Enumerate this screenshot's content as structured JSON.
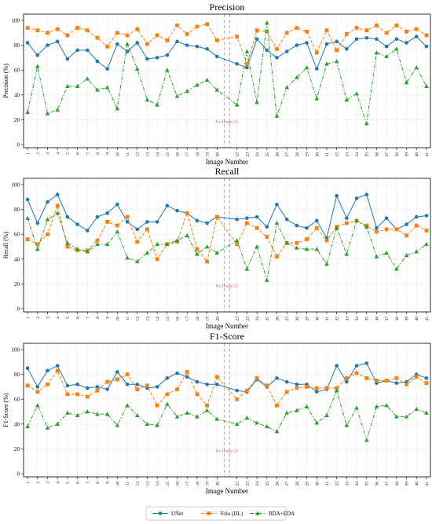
{
  "figure": {
    "no_image_label": "No Image 21"
  },
  "legend": {
    "entries": [
      "UNet",
      "Yolo (DL)",
      "RDA+EDA"
    ]
  },
  "colors": {
    "UNet": "#1f77b4",
    "Yolo (DL)": "#ff7f0e",
    "RDA+EDA": "#2ca02c",
    "no_image_band": "#a0a0a0",
    "no_image_text": "#e06060",
    "grid": "#dcdcdc"
  },
  "chart_data": [
    {
      "type": "line",
      "title": "Precision",
      "xlabel": "Image Number",
      "ylabel": "Precision (%)",
      "ylim": [
        0,
        100
      ],
      "yticks": [
        0,
        20,
        40,
        60,
        80,
        100
      ],
      "x": [
        1,
        2,
        3,
        4,
        5,
        6,
        7,
        8,
        9,
        10,
        11,
        12,
        13,
        14,
        15,
        16,
        17,
        18,
        19,
        20,
        22,
        23,
        24,
        25,
        26,
        27,
        28,
        29,
        30,
        31,
        32,
        33,
        34,
        35,
        36,
        37,
        38,
        39,
        40,
        41
      ],
      "grid": true,
      "series": [
        {
          "name": "UNet",
          "marker": "circle",
          "style": "solid",
          "values": [
            82,
            72,
            80,
            83,
            69,
            76,
            76,
            67,
            61,
            81,
            75,
            82,
            69,
            70,
            72,
            83,
            80,
            79,
            77,
            71,
            65,
            62,
            85,
            76,
            70,
            75,
            80,
            82,
            61,
            81,
            83,
            77,
            85,
            86,
            85,
            79,
            85,
            82,
            87,
            79
          ]
        },
        {
          "name": "Yolo (DL)",
          "marker": "square",
          "style": "dashed",
          "values": [
            94,
            92,
            90,
            93,
            88,
            94,
            92,
            86,
            79,
            90,
            88,
            93,
            81,
            88,
            84,
            96,
            89,
            95,
            97,
            84,
            87,
            65,
            92,
            91,
            77,
            90,
            94,
            91,
            74,
            92,
            76,
            89,
            94,
            92,
            96,
            90,
            96,
            91,
            93,
            88
          ]
        },
        {
          "name": "RDA+EDA",
          "marker": "triangle",
          "style": "dashdot",
          "values": [
            26,
            63,
            25,
            28,
            47,
            47,
            53,
            44,
            46,
            29,
            81,
            61,
            36,
            32,
            60,
            39,
            43,
            48,
            52,
            44,
            32,
            75,
            34,
            98,
            23,
            46,
            54,
            62,
            37,
            65,
            67,
            36,
            41,
            17,
            74,
            71,
            77,
            50,
            62,
            47
          ]
        }
      ]
    },
    {
      "type": "line",
      "title": "Recall",
      "xlabel": "Image Number",
      "ylabel": "Recall (%)",
      "ylim": [
        0,
        100
      ],
      "yticks": [
        0,
        20,
        40,
        60,
        80,
        100
      ],
      "x": [
        1,
        2,
        3,
        4,
        5,
        6,
        7,
        8,
        9,
        10,
        11,
        12,
        13,
        14,
        15,
        16,
        17,
        18,
        19,
        20,
        22,
        23,
        24,
        25,
        26,
        27,
        28,
        29,
        30,
        31,
        32,
        33,
        34,
        35,
        36,
        37,
        38,
        39,
        40,
        41
      ],
      "grid": true,
      "series": [
        {
          "name": "UNet",
          "marker": "circle",
          "style": "solid",
          "values": [
            88,
            69,
            86,
            92,
            74,
            68,
            63,
            74,
            77,
            84,
            70,
            64,
            70,
            70,
            83,
            79,
            77,
            71,
            69,
            74,
            72,
            73,
            74,
            66,
            84,
            72,
            67,
            65,
            71,
            57,
            91,
            73,
            89,
            92,
            65,
            73,
            64,
            68,
            74,
            75
          ]
        },
        {
          "name": "Yolo (DL)",
          "marker": "square",
          "style": "dashed",
          "values": [
            56,
            52,
            60,
            83,
            50,
            47,
            47,
            55,
            70,
            67,
            74,
            54,
            64,
            40,
            52,
            54,
            77,
            48,
            38,
            74,
            52,
            69,
            65,
            58,
            42,
            53,
            53,
            56,
            65,
            55,
            66,
            69,
            71,
            67,
            62,
            64,
            64,
            59,
            67,
            63
          ]
        },
        {
          "name": "RDA+EDA",
          "marker": "triangle",
          "style": "dashdot",
          "values": [
            73,
            48,
            72,
            77,
            53,
            48,
            46,
            52,
            52,
            62,
            41,
            38,
            45,
            52,
            52,
            55,
            59,
            44,
            50,
            45,
            55,
            32,
            50,
            23,
            69,
            53,
            49,
            48,
            48,
            36,
            65,
            44,
            71,
            66,
            42,
            45,
            32,
            43,
            46,
            52
          ]
        }
      ]
    },
    {
      "type": "line",
      "title": "F1-Score",
      "xlabel": "Image Number",
      "ylabel": "F1-Score (%)",
      "ylim": [
        0,
        100
      ],
      "yticks": [
        0,
        20,
        40,
        60,
        80,
        100
      ],
      "x": [
        1,
        2,
        3,
        4,
        5,
        6,
        7,
        8,
        9,
        10,
        11,
        12,
        13,
        14,
        15,
        16,
        17,
        18,
        19,
        20,
        22,
        23,
        24,
        25,
        26,
        27,
        28,
        29,
        30,
        31,
        32,
        33,
        34,
        35,
        36,
        37,
        38,
        39,
        40,
        41
      ],
      "grid": true,
      "series": [
        {
          "name": "UNet",
          "marker": "circle",
          "style": "solid",
          "values": [
            85,
            70,
            83,
            87,
            71,
            72,
            69,
            70,
            68,
            82,
            72,
            72,
            69,
            70,
            77,
            81,
            78,
            74,
            72,
            72,
            67,
            66,
            76,
            70,
            77,
            74,
            72,
            72,
            66,
            68,
            87,
            74,
            87,
            89,
            73,
            75,
            73,
            74,
            80,
            77
          ]
        },
        {
          "name": "Yolo (DL)",
          "marker": "square",
          "style": "dashed",
          "values": [
            71,
            66,
            72,
            83,
            64,
            64,
            62,
            67,
            74,
            76,
            80,
            68,
            71,
            55,
            64,
            68,
            82,
            64,
            55,
            78,
            60,
            67,
            77,
            71,
            55,
            66,
            69,
            70,
            69,
            69,
            69,
            77,
            81,
            77,
            75,
            75,
            77,
            72,
            78,
            73
          ]
        },
        {
          "name": "RDA+EDA",
          "marker": "triangle",
          "style": "dashdot",
          "values": [
            38,
            55,
            37,
            40,
            49,
            47,
            50,
            48,
            48,
            39,
            55,
            47,
            40,
            39,
            56,
            46,
            49,
            46,
            51,
            44,
            40,
            45,
            41,
            38,
            34,
            49,
            51,
            54,
            41,
            47,
            67,
            39,
            53,
            27,
            54,
            55,
            46,
            46,
            52,
            49
          ]
        }
      ]
    }
  ]
}
